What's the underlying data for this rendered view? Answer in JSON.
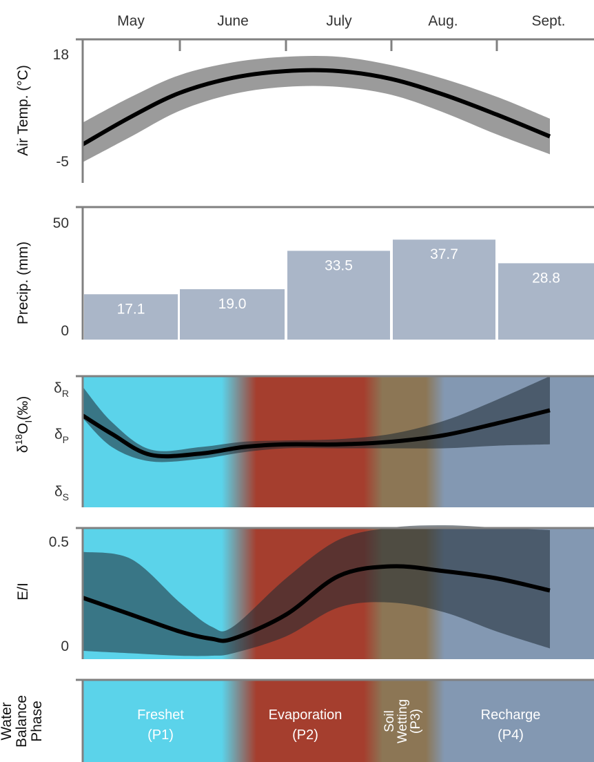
{
  "months": [
    "May",
    "June",
    "July",
    "Aug.",
    "Sept."
  ],
  "colors": {
    "freshet": "#5bd3ea",
    "evaporation": "#a53e2e",
    "wetting": "#8c7655",
    "recharge": "#8398b2",
    "bar": "#aab6c8",
    "axis": "#808080",
    "band_temp": "#9b9b9b",
    "band_dark": "#1e2a33",
    "line": "#000000"
  },
  "chart_data": [
    {
      "type": "area",
      "panel": "temperature",
      "ylabel": "Air Temp. (°C)",
      "ytick_labels": [
        "18",
        "-5"
      ],
      "ylim": [
        -8,
        19
      ],
      "x": [
        0,
        0.5,
        1,
        1.5,
        2,
        2.5,
        3,
        3.5,
        4,
        4.5
      ],
      "mean": [
        -3.5,
        3.5,
        9.5,
        13.3,
        15,
        15,
        13,
        9,
        4,
        -1.5
      ],
      "upper": [
        2,
        8.5,
        14,
        17.2,
        18.6,
        18.6,
        16.5,
        13,
        8.5,
        3
      ],
      "lower": [
        -8,
        -1.5,
        5,
        9.2,
        11,
        11,
        9,
        4.5,
        -1,
        -6
      ]
    },
    {
      "type": "bar",
      "panel": "precipitation",
      "ylabel": "Precip. (mm)",
      "ytick_labels": [
        "50",
        "0"
      ],
      "ylim": [
        0,
        50
      ],
      "categories": [
        "May",
        "June",
        "July",
        "Aug.",
        "Sept."
      ],
      "values": [
        17.1,
        19.0,
        33.5,
        37.7,
        28.8
      ],
      "data_labels": [
        "17.1",
        "19.0",
        "33.5",
        "37.7",
        "28.8"
      ]
    },
    {
      "type": "line",
      "panel": "isotope",
      "ylabel_main": "δ",
      "ylabel_sup": "18",
      "ylabel_o": "O",
      "ylabel_sub": "I",
      "ylabel_unit": "(‰)",
      "ytick_labels": [
        {
          "main": "δ",
          "sub": "R"
        },
        {
          "main": "δ",
          "sub": "P"
        },
        {
          "main": "δ",
          "sub": "S"
        }
      ],
      "ylim": [
        0,
        1
      ],
      "tick_values": [
        0.88,
        0.52,
        0.14
      ],
      "x": [
        0,
        0.3,
        0.7,
        1.2,
        1.6,
        2.0,
        2.5,
        3.0,
        3.5,
        4.0,
        4.5
      ],
      "mean": [
        0.7,
        0.56,
        0.4,
        0.41,
        0.46,
        0.48,
        0.48,
        0.5,
        0.55,
        0.64,
        0.74
      ],
      "upper": [
        0.92,
        0.65,
        0.44,
        0.46,
        0.5,
        0.51,
        0.52,
        0.56,
        0.66,
        0.82,
        1.0
      ],
      "lower": [
        0.68,
        0.46,
        0.35,
        0.37,
        0.42,
        0.45,
        0.45,
        0.45,
        0.45,
        0.47,
        0.48
      ]
    },
    {
      "type": "line",
      "panel": "evaporation_inflow",
      "ylabel": "E/I",
      "ytick_labels": [
        "0.5",
        "0"
      ],
      "ylim": [
        0,
        0.5
      ],
      "x": [
        0,
        0.5,
        1,
        1.3,
        1.5,
        2,
        2.5,
        3,
        3.5,
        4,
        4.5
      ],
      "mean": [
        0.24,
        0.17,
        0.1,
        0.07,
        0.07,
        0.17,
        0.33,
        0.37,
        0.35,
        0.32,
        0.27
      ],
      "upper": [
        0.43,
        0.4,
        0.22,
        0.12,
        0.12,
        0.32,
        0.48,
        0.53,
        0.54,
        0.53,
        0.52
      ],
      "lower": [
        0.02,
        0.01,
        0.0,
        0.0,
        0.01,
        0.08,
        0.2,
        0.22,
        0.18,
        0.1,
        0.03
      ]
    }
  ],
  "phase_panel": {
    "ylabel_lines": [
      "Water",
      "Balance",
      "Phase"
    ],
    "phases": [
      {
        "name": "Freshet",
        "code": "(P1)"
      },
      {
        "name": "Evaporation",
        "code": "(P2)"
      },
      {
        "name_lines": [
          "Soil",
          "Wetting",
          "(P3)"
        ]
      },
      {
        "name": "Recharge",
        "code": "(P4)"
      }
    ]
  }
}
